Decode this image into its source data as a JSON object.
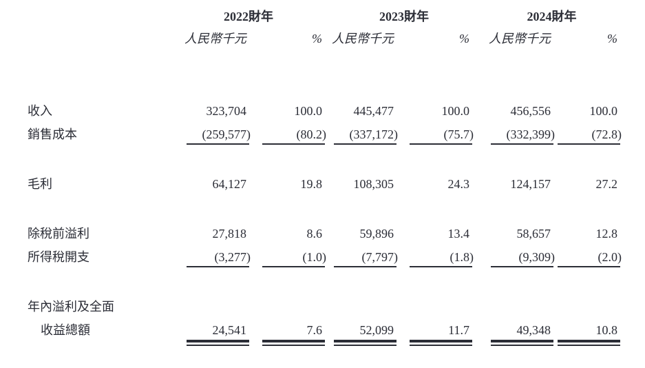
{
  "table": {
    "currency_note": "人民幣千元",
    "percent_symbol": "%",
    "year_headers": [
      "2022財年",
      "2023財年",
      "2024財年"
    ],
    "column_groups": [
      {
        "year": "2022財年",
        "columns": [
          "人民幣千元",
          "%"
        ]
      },
      {
        "year": "2023財年",
        "columns": [
          "人民幣千元",
          "%"
        ]
      },
      {
        "year": "2024財年",
        "columns": [
          "人民幣千元",
          "%"
        ]
      }
    ],
    "ink_color": "#2b2d36",
    "rows": [
      {
        "label": "收入",
        "indent": false,
        "spacer_before": false,
        "rule": "none",
        "values": [
          "323,704",
          "100.0",
          "445,477",
          "100.0",
          "456,556",
          "100.0"
        ]
      },
      {
        "label": "銷售成本",
        "indent": false,
        "spacer_before": false,
        "rule": "single",
        "values": [
          "(259,577)",
          "(80.2)",
          "(337,172)",
          "(75.7)",
          "(332,399)",
          "(72.8)"
        ]
      },
      {
        "label": "毛利",
        "indent": false,
        "spacer_before": true,
        "rule": "none",
        "values": [
          "64,127",
          "19.8",
          "108,305",
          "24.3",
          "124,157",
          "27.2"
        ]
      },
      {
        "label": "除稅前溢利",
        "indent": false,
        "spacer_before": true,
        "rule": "none",
        "values": [
          "27,818",
          "8.6",
          "59,896",
          "13.4",
          "58,657",
          "12.8"
        ]
      },
      {
        "label": "所得稅開支",
        "indent": false,
        "spacer_before": false,
        "rule": "single",
        "values": [
          "(3,277)",
          "(1.0)",
          "(7,797)",
          "(1.8)",
          "(9,309)",
          "(2.0)"
        ]
      },
      {
        "label": "年內溢利及全面",
        "indent": false,
        "spacer_before": true,
        "rule": "none",
        "values": []
      },
      {
        "label": "收益總額",
        "indent": true,
        "spacer_before": false,
        "rule": "double",
        "values": [
          "24,541",
          "7.6",
          "52,099",
          "11.7",
          "49,348",
          "10.8"
        ]
      }
    ]
  }
}
